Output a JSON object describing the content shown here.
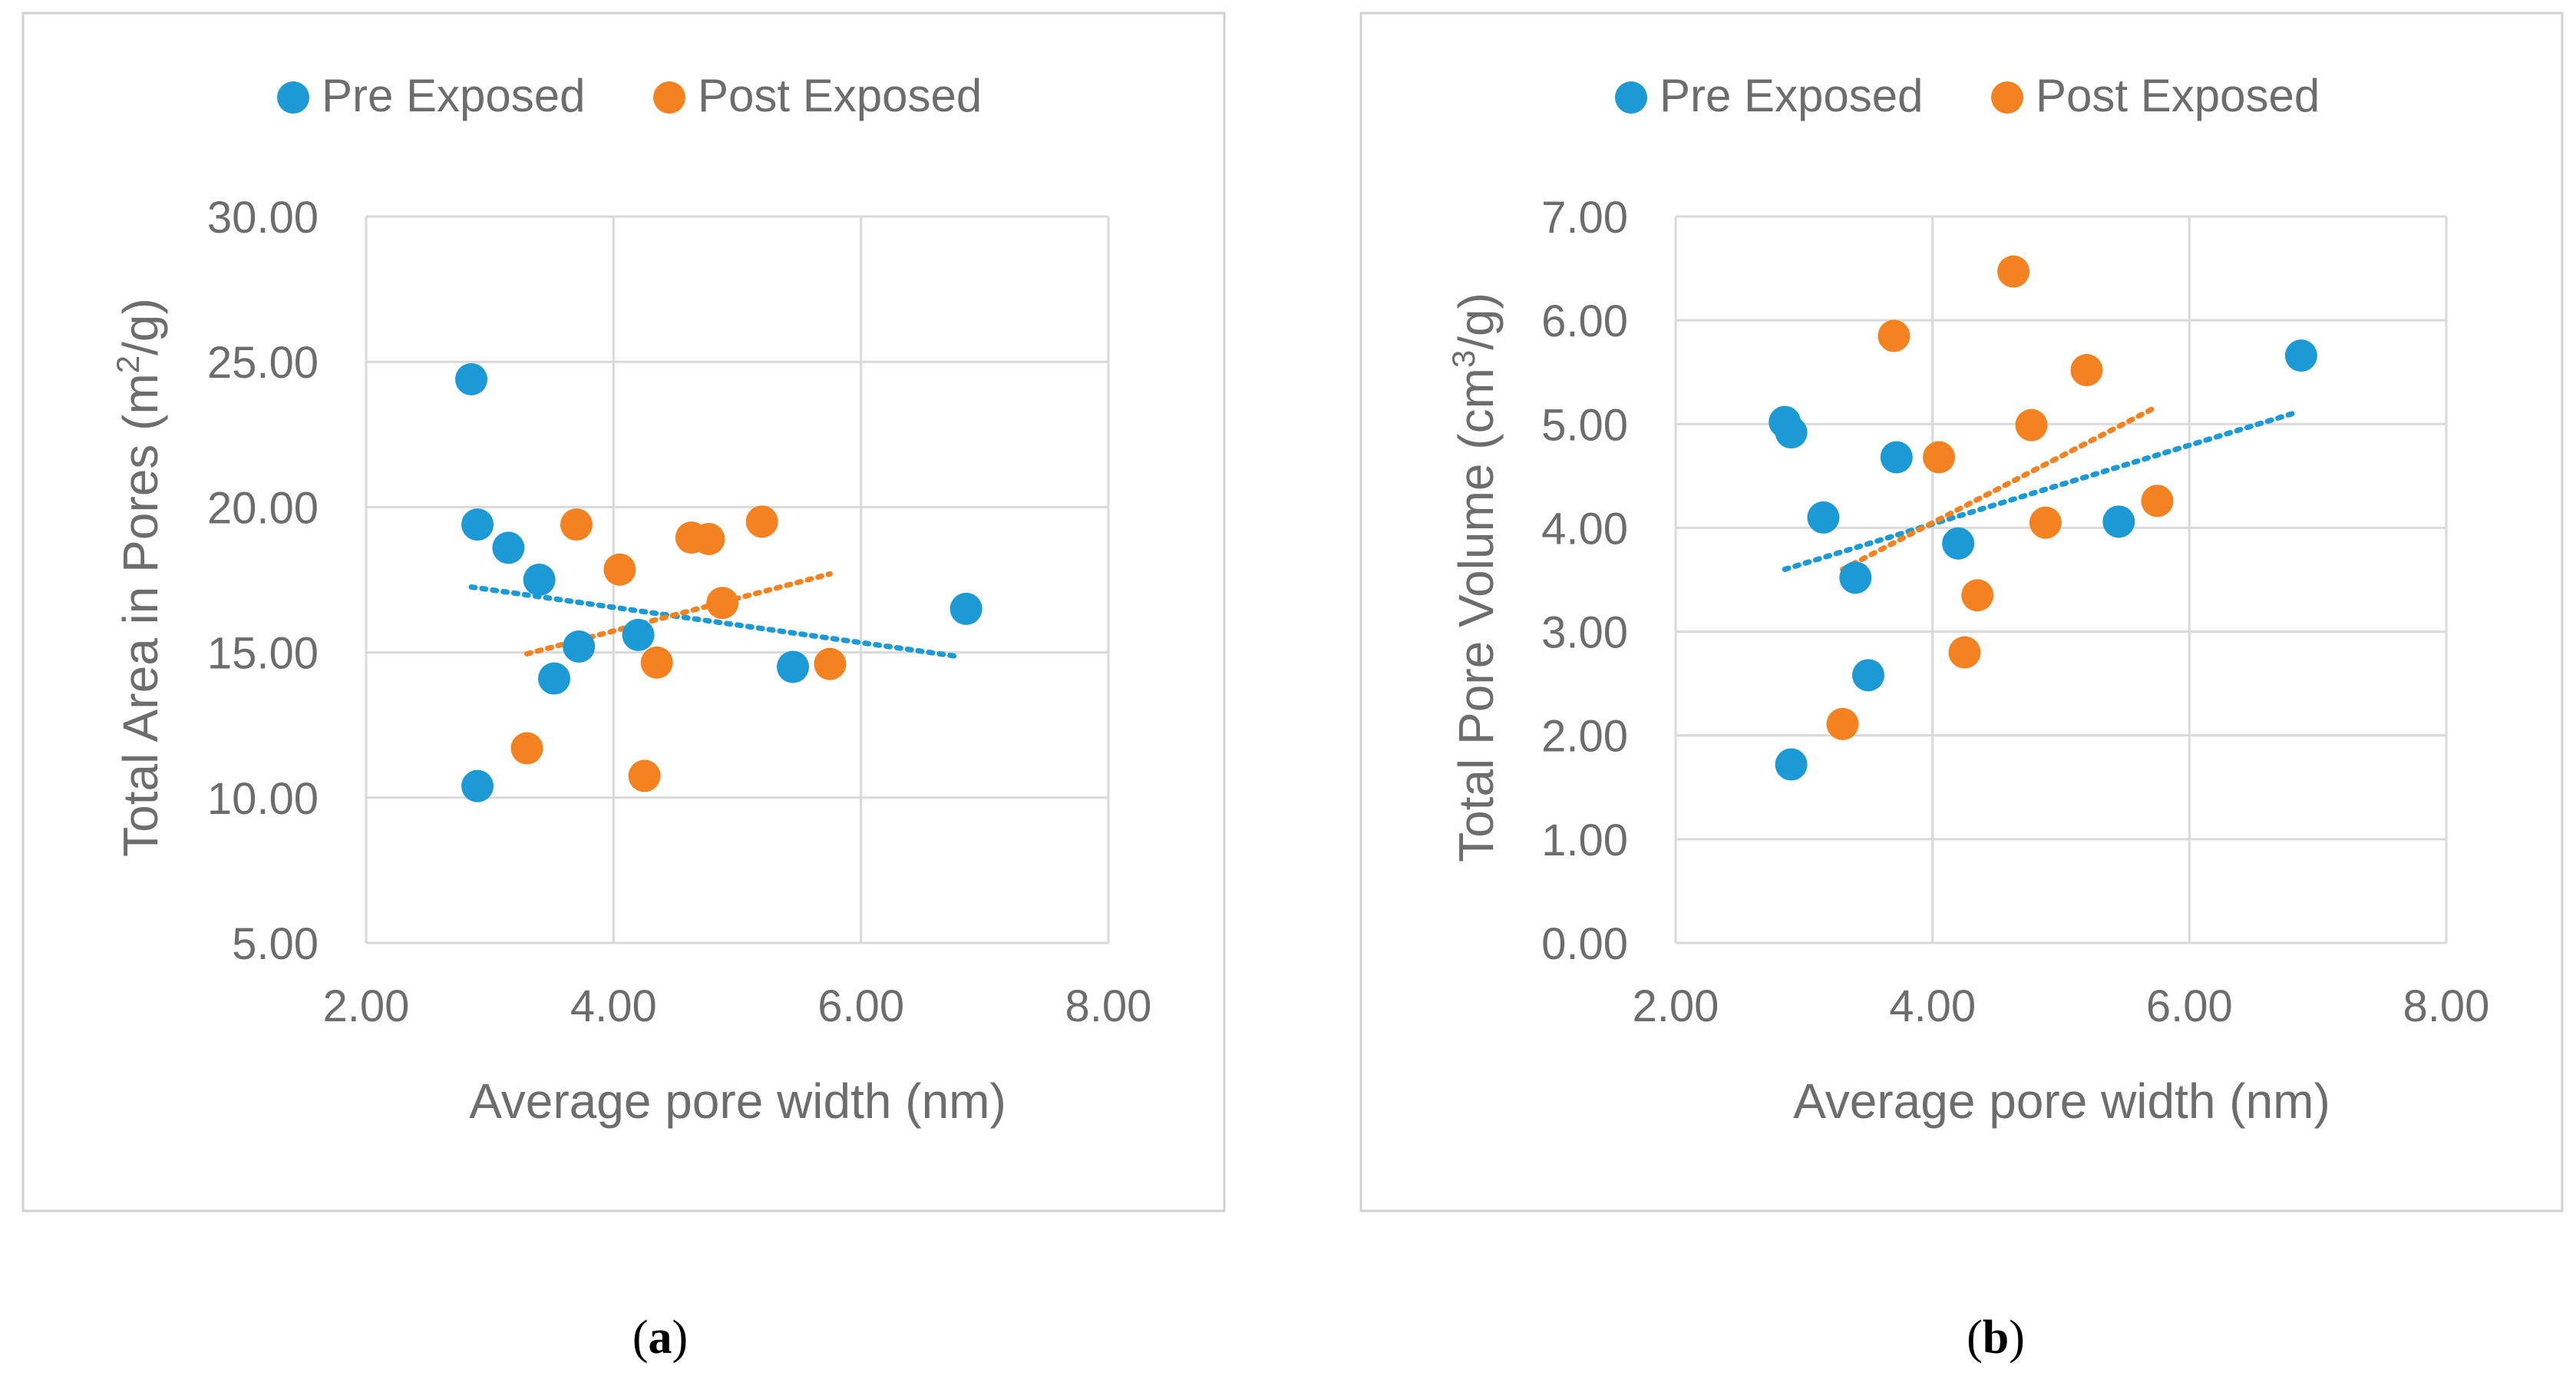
{
  "colors": {
    "pre": "#1c9ad6",
    "post": "#f58220",
    "grid": "#d9d9d9",
    "frame": "#d0d0d0",
    "text": "#6d6d6d"
  },
  "panels": [
    {
      "caption_open": "(",
      "caption_letter": "a",
      "caption_close": ")",
      "chart_ref": 0
    },
    {
      "caption_open": "(",
      "caption_letter": "b",
      "caption_close": ")",
      "chart_ref": 1
    }
  ],
  "chart_data": [
    {
      "type": "scatter",
      "title": "",
      "xlabel": "Average pore width (nm)",
      "ylabel_main": "Total Area in Pores (m",
      "ylabel_sup": "2",
      "ylabel_end": "/g)",
      "xlim": [
        2,
        8
      ],
      "ylim": [
        5,
        30
      ],
      "x_ticks": [
        "2.00",
        "4.00",
        "6.00",
        "8.00"
      ],
      "x_tick_values": [
        2,
        4,
        6,
        8
      ],
      "y_ticks": [
        "5.00",
        "10.00",
        "15.00",
        "20.00",
        "25.00",
        "30.00"
      ],
      "y_tick_values": [
        5,
        10,
        15,
        20,
        25,
        30
      ],
      "grid": true,
      "legend_position": "top",
      "series": [
        {
          "name": "Pre Exposed",
          "color_key": "pre",
          "points": [
            [
              2.85,
              24.4
            ],
            [
              2.9,
              19.4
            ],
            [
              3.15,
              18.6
            ],
            [
              3.4,
              17.5
            ],
            [
              3.72,
              15.2
            ],
            [
              3.52,
              14.1
            ],
            [
              2.9,
              10.4
            ],
            [
              4.2,
              15.6
            ],
            [
              5.45,
              14.5
            ],
            [
              6.85,
              16.5
            ]
          ],
          "trend": [
            [
              2.85,
              17.25
            ],
            [
              6.8,
              14.85
            ]
          ]
        },
        {
          "name": "Post Exposed",
          "color_key": "post",
          "points": [
            [
              3.3,
              11.7
            ],
            [
              3.7,
              19.4
            ],
            [
              4.05,
              17.85
            ],
            [
              4.25,
              10.75
            ],
            [
              4.35,
              14.65
            ],
            [
              4.63,
              18.95
            ],
            [
              4.77,
              18.9
            ],
            [
              4.88,
              16.7
            ],
            [
              5.2,
              19.5
            ],
            [
              5.75,
              14.6
            ]
          ],
          "trend": [
            [
              3.3,
              14.95
            ],
            [
              5.75,
              17.7
            ]
          ]
        }
      ]
    },
    {
      "type": "scatter",
      "title": "",
      "xlabel": "Average pore width (nm)",
      "ylabel_main": "Total Pore Volume (cm",
      "ylabel_sup": "3",
      "ylabel_end": "/g)",
      "xlim": [
        2,
        8
      ],
      "ylim": [
        0,
        7
      ],
      "x_ticks": [
        "2.00",
        "4.00",
        "6.00",
        "8.00"
      ],
      "x_tick_values": [
        2,
        4,
        6,
        8
      ],
      "y_ticks": [
        "0.00",
        "1.00",
        "2.00",
        "3.00",
        "4.00",
        "5.00",
        "6.00",
        "7.00"
      ],
      "y_tick_values": [
        0,
        1,
        2,
        3,
        4,
        5,
        6,
        7
      ],
      "grid": true,
      "legend_position": "top",
      "series": [
        {
          "name": "Pre Exposed",
          "color_key": "pre",
          "points": [
            [
              2.85,
              5.02
            ],
            [
              2.9,
              4.92
            ],
            [
              2.9,
              1.72
            ],
            [
              3.15,
              4.1
            ],
            [
              3.4,
              3.52
            ],
            [
              3.5,
              2.58
            ],
            [
              3.72,
              4.68
            ],
            [
              4.2,
              3.85
            ],
            [
              5.45,
              4.06
            ],
            [
              6.87,
              5.66
            ]
          ],
          "trend": [
            [
              2.85,
              3.6
            ],
            [
              6.8,
              5.1
            ]
          ]
        },
        {
          "name": "Post Exposed",
          "color_key": "post",
          "points": [
            [
              3.3,
              2.11
            ],
            [
              3.7,
              5.85
            ],
            [
              4.05,
              4.68
            ],
            [
              4.25,
              2.8
            ],
            [
              4.35,
              3.35
            ],
            [
              4.63,
              6.47
            ],
            [
              4.77,
              4.99
            ],
            [
              4.88,
              4.05
            ],
            [
              5.2,
              5.52
            ],
            [
              5.75,
              4.26
            ]
          ],
          "trend": [
            [
              3.3,
              3.6
            ],
            [
              5.75,
              5.17
            ]
          ]
        }
      ]
    }
  ]
}
